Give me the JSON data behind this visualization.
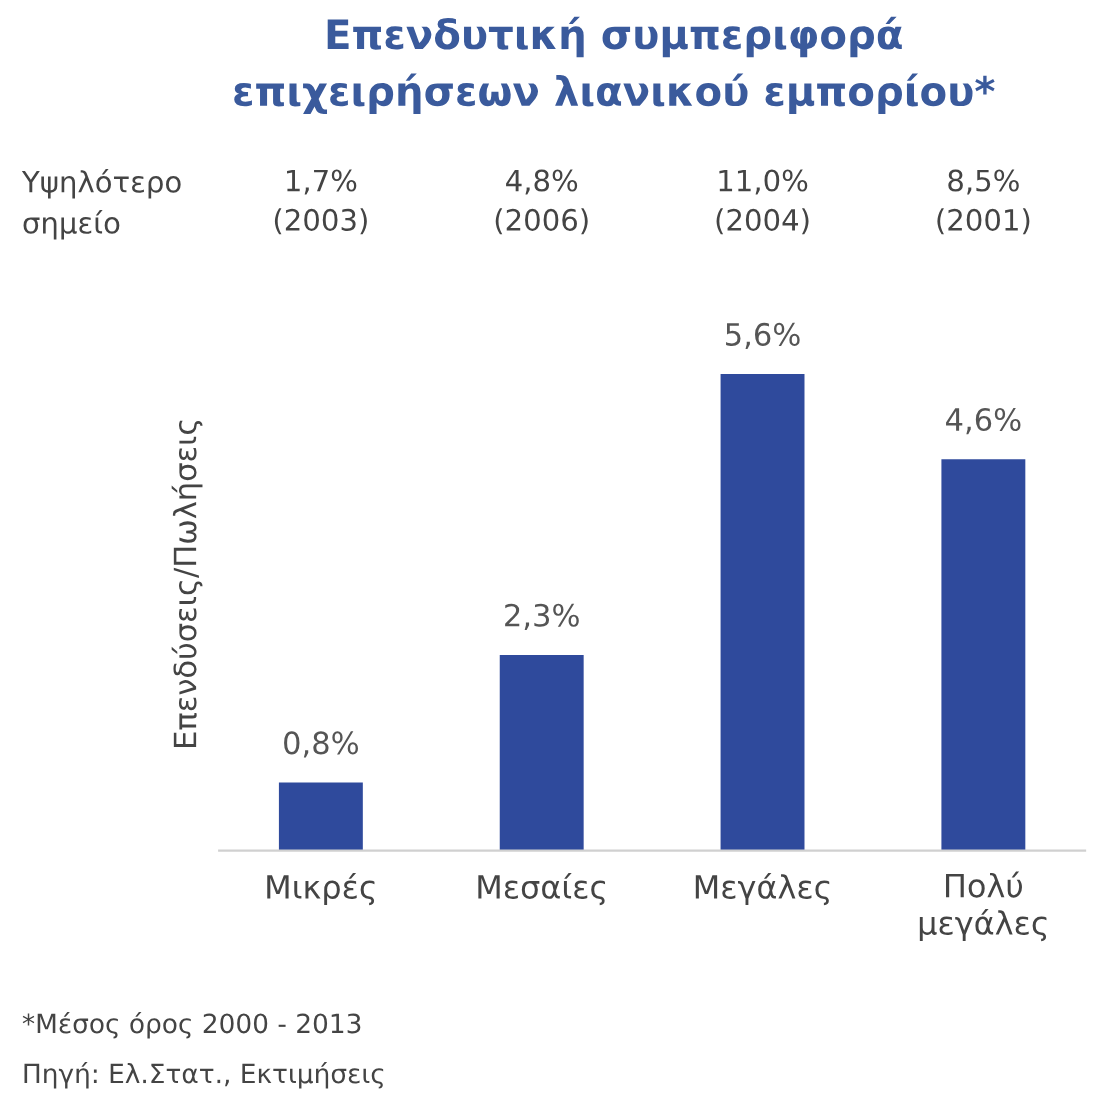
{
  "chart_data": {
    "type": "bar",
    "title": "Επενδυτική συμπεριφορά\nεπιχειρήσεων λιανικού εμπορίου*",
    "ylabel": "Επενδύσεις/Πωλήσεις",
    "categories": [
      "Μικρές",
      "Μεσαίες",
      "Μεγάλες",
      "Πολύ\nμεγάλες"
    ],
    "values": [
      0.8,
      2.3,
      5.6,
      4.6
    ],
    "value_labels": [
      "0,8%",
      "2,3%",
      "5,6%",
      "4,6%"
    ],
    "color": "#2f4a9c",
    "annotations": [
      "Υψηλότερο\nσημείο",
      "1,7%\n(2003)",
      "4,8%\n(2006)",
      "11,0%\n(2004)",
      "8,5%\n(2001)",
      "*Μέσος όρος 2000 - 2013",
      "Πηγή: Ελ.Στατ., Εκτιμήσεις"
    ],
    "grid": false,
    "legend": false
  }
}
